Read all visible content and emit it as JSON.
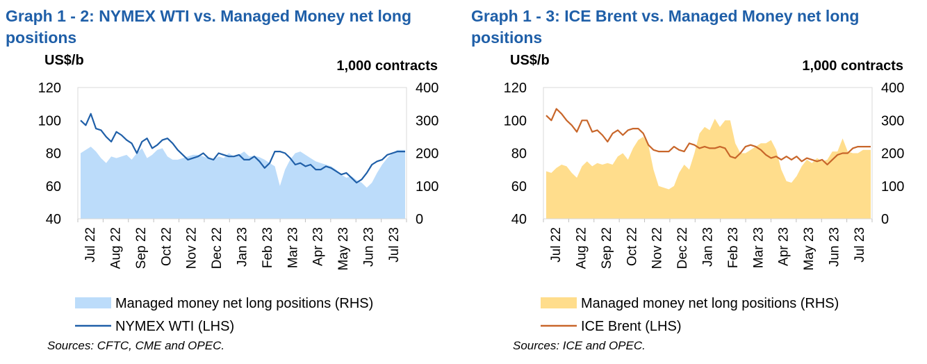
{
  "chart_data": [
    {
      "type": "line",
      "title": "Graph 1 - 2: NYMEX WTI vs. Managed Money net long positions",
      "ylabel_left": "US$/b",
      "ylabel_right": "1,000 contracts",
      "ylim_left": [
        40,
        120
      ],
      "yticks_left": [
        "120",
        "100",
        "80",
        "60",
        "40"
      ],
      "ylim_right": [
        0,
        400
      ],
      "yticks_right": [
        "400",
        "300",
        "200",
        "100",
        "0"
      ],
      "x_tick_labels": [
        "Jul 22",
        "Aug 22",
        "Sep 22",
        "Oct 22",
        "Nov 22",
        "Dec 22",
        "Jan 23",
        "Feb 23",
        "Mar 23",
        "Apr 23",
        "May 23",
        "Jun 23",
        "Jul 23"
      ],
      "grid": false,
      "series": [
        {
          "name": "Managed money net long positions (RHS)",
          "type": "area",
          "axis": "right",
          "color": "#bcdcfa",
          "x": [
            0,
            0.2,
            0.4,
            0.6,
            0.8,
            1.0,
            1.2,
            1.4,
            1.6,
            1.8,
            2.0,
            2.2,
            2.4,
            2.6,
            2.8,
            3.0,
            3.2,
            3.4,
            3.6,
            3.8,
            4.0,
            4.2,
            4.4,
            4.6,
            4.8,
            5.0,
            5.2,
            5.4,
            5.6,
            5.8,
            6.0,
            6.2,
            6.4,
            6.6,
            6.8,
            7.0,
            7.2,
            7.4,
            7.6,
            7.8,
            8.0,
            8.2,
            8.4,
            8.6,
            8.8,
            9.0,
            9.2,
            9.4,
            9.6,
            9.8,
            10.0,
            10.2,
            10.4,
            10.6,
            10.8,
            11.0,
            11.2,
            11.4,
            11.6,
            11.8,
            12.0,
            12.2,
            12.4,
            12.7
          ],
          "values": [
            200,
            210,
            220,
            205,
            185,
            170,
            190,
            185,
            190,
            195,
            180,
            200,
            215,
            185,
            195,
            210,
            215,
            190,
            180,
            180,
            185,
            190,
            195,
            195,
            190,
            185,
            180,
            190,
            185,
            200,
            190,
            195,
            205,
            190,
            192,
            188,
            180,
            170,
            160,
            100,
            150,
            180,
            200,
            205,
            195,
            185,
            175,
            170,
            165,
            160,
            150,
            135,
            125,
            130,
            118,
            110,
            95,
            110,
            140,
            165,
            185,
            200,
            210,
            210
          ]
        },
        {
          "name": "NYMEX WTI (LHS)",
          "type": "line",
          "axis": "left",
          "color": "#1f5fa8",
          "x": [
            0,
            0.2,
            0.4,
            0.6,
            0.8,
            1.0,
            1.2,
            1.4,
            1.6,
            1.8,
            2.0,
            2.2,
            2.4,
            2.6,
            2.8,
            3.0,
            3.2,
            3.4,
            3.6,
            3.8,
            4.0,
            4.2,
            4.4,
            4.6,
            4.8,
            5.0,
            5.2,
            5.4,
            5.6,
            5.8,
            6.0,
            6.2,
            6.4,
            6.6,
            6.8,
            7.0,
            7.2,
            7.4,
            7.6,
            7.8,
            8.0,
            8.2,
            8.4,
            8.6,
            8.8,
            9.0,
            9.2,
            9.4,
            9.6,
            9.8,
            10.0,
            10.2,
            10.4,
            10.6,
            10.8,
            11.0,
            11.2,
            11.4,
            11.6,
            11.8,
            12.0,
            12.2,
            12.4,
            12.7
          ],
          "values": [
            100,
            97,
            104,
            95,
            94,
            90,
            87,
            93,
            91,
            88,
            86,
            80,
            87,
            89,
            83,
            85,
            88,
            89,
            86,
            82,
            79,
            76,
            77,
            78,
            80,
            77,
            76,
            80,
            79,
            78,
            78,
            79,
            76,
            76,
            78,
            75,
            71,
            74,
            81,
            81,
            80,
            77,
            73,
            74,
            72,
            73,
            70,
            70,
            72,
            71,
            69,
            67,
            68,
            65,
            62,
            64,
            68,
            73,
            75,
            76,
            79,
            80,
            81,
            81
          ]
        }
      ],
      "legend": "bottom",
      "source": "Sources: CFTC, CME and OPEC."
    },
    {
      "type": "line",
      "title": "Graph 1 - 3: ICE Brent vs. Managed Money net long positions",
      "ylabel_left": "US$/b",
      "ylabel_right": "1,000 contracts",
      "ylim_left": [
        40,
        120
      ],
      "yticks_left": [
        "120",
        "100",
        "80",
        "60",
        "40"
      ],
      "ylim_right": [
        0,
        400
      ],
      "yticks_right": [
        "400",
        "300",
        "200",
        "100",
        "0"
      ],
      "x_tick_labels": [
        "Jul 22",
        "Aug 22",
        "Sep 22",
        "Oct 22",
        "Nov 22",
        "Dec 22",
        "Jan 23",
        "Feb 23",
        "Mar 23",
        "Apr 23",
        "May 23",
        "Jun 23",
        "Jul 23"
      ],
      "grid": false,
      "series": [
        {
          "name": "Managed money net long positions (RHS)",
          "type": "area",
          "axis": "right",
          "color": "#ffdd8c",
          "x": [
            0,
            0.2,
            0.4,
            0.6,
            0.8,
            1.0,
            1.2,
            1.4,
            1.6,
            1.8,
            2.0,
            2.2,
            2.4,
            2.6,
            2.8,
            3.0,
            3.2,
            3.4,
            3.6,
            3.8,
            4.0,
            4.2,
            4.4,
            4.6,
            4.8,
            5.0,
            5.2,
            5.4,
            5.6,
            5.8,
            6.0,
            6.2,
            6.4,
            6.6,
            6.8,
            7.0,
            7.2,
            7.4,
            7.6,
            7.8,
            8.0,
            8.2,
            8.4,
            8.6,
            8.8,
            9.0,
            9.2,
            9.4,
            9.6,
            9.8,
            10.0,
            10.2,
            10.4,
            10.6,
            10.8,
            11.0,
            11.2,
            11.4,
            11.6,
            11.8,
            12.0,
            12.2,
            12.4,
            12.7
          ],
          "values": [
            145,
            140,
            155,
            165,
            160,
            140,
            125,
            160,
            175,
            160,
            170,
            165,
            170,
            165,
            190,
            200,
            180,
            215,
            240,
            250,
            225,
            150,
            100,
            95,
            90,
            100,
            140,
            165,
            150,
            200,
            260,
            280,
            270,
            305,
            280,
            300,
            300,
            230,
            200,
            200,
            210,
            220,
            230,
            230,
            240,
            210,
            150,
            115,
            110,
            130,
            160,
            180,
            170,
            185,
            175,
            180,
            205,
            205,
            245,
            205,
            200,
            200,
            210,
            210
          ]
        },
        {
          "name": "ICE Brent (LHS)",
          "type": "line",
          "axis": "left",
          "color": "#c8662a",
          "x": [
            0,
            0.2,
            0.4,
            0.6,
            0.8,
            1.0,
            1.2,
            1.4,
            1.6,
            1.8,
            2.0,
            2.2,
            2.4,
            2.6,
            2.8,
            3.0,
            3.2,
            3.4,
            3.6,
            3.8,
            4.0,
            4.2,
            4.4,
            4.6,
            4.8,
            5.0,
            5.2,
            5.4,
            5.6,
            5.8,
            6.0,
            6.2,
            6.4,
            6.6,
            6.8,
            7.0,
            7.2,
            7.4,
            7.6,
            7.8,
            8.0,
            8.2,
            8.4,
            8.6,
            8.8,
            9.0,
            9.2,
            9.4,
            9.6,
            9.8,
            10.0,
            10.2,
            10.4,
            10.6,
            10.8,
            11.0,
            11.2,
            11.4,
            11.6,
            11.8,
            12.0,
            12.2,
            12.4,
            12.7
          ],
          "values": [
            103,
            100,
            107,
            104,
            100,
            97,
            93,
            100,
            100,
            93,
            94,
            91,
            87,
            92,
            94,
            91,
            94,
            95,
            95,
            92,
            85,
            82,
            81,
            81,
            81,
            84,
            82,
            81,
            86,
            85,
            83,
            84,
            83,
            83,
            84,
            83,
            78,
            77,
            80,
            84,
            85,
            84,
            82,
            79,
            77,
            78,
            76,
            78,
            76,
            78,
            75,
            77,
            76,
            75,
            76,
            73,
            76,
            79,
            80,
            80,
            83,
            84,
            84,
            84
          ]
        }
      ],
      "legend": "bottom",
      "source": "Sources: ICE and OPEC."
    }
  ]
}
